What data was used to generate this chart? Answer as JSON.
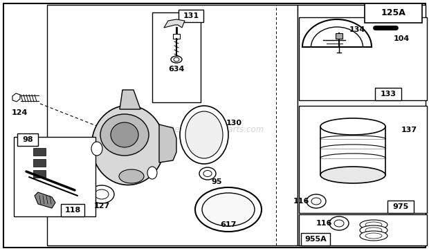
{
  "bg": "#ffffff",
  "watermark": "eReplacementParts.com",
  "page_label": "125A"
}
